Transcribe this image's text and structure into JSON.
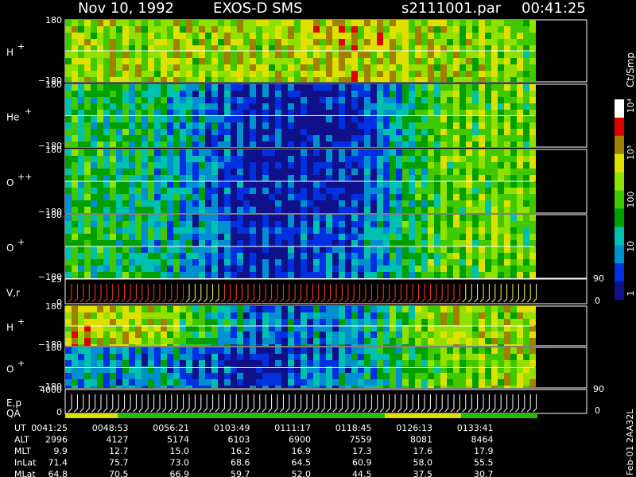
{
  "header": {
    "date": "Nov 10, 1992",
    "instrument": "EXOS-D SMS",
    "file": "s2111001.par",
    "time": "00:41:25"
  },
  "panels": [
    {
      "label": "H",
      "sup": "+",
      "top": "180",
      "bottom": "−180"
    },
    {
      "label": "He",
      "sup": "+",
      "top": "180",
      "bottom": "−180"
    },
    {
      "label": "O",
      "sup": "++",
      "top": "180",
      "bottom": "−180"
    },
    {
      "label": "O",
      "sup": "+",
      "top": "180",
      "bottom": "−180"
    },
    {
      "label": "V,r",
      "top": "25",
      "bottom": "0",
      "right_top": "90",
      "right_bottom": "0"
    },
    {
      "label": "H",
      "sup": "+",
      "top": "180",
      "bottom": "−180"
    },
    {
      "label": "O",
      "sup": "+",
      "top": "180",
      "bottom": "−180"
    },
    {
      "label": "E,p",
      "top": "4000",
      "bottom": "0",
      "right_top": "90",
      "right_bottom": "0"
    }
  ],
  "qa_label": "QA",
  "colorbar": {
    "unit": "Ct/Smp",
    "ticks": [
      "1",
      "10",
      "100",
      "10³",
      "10⁴"
    ]
  },
  "table": {
    "rows": [
      [
        "UT",
        "0041:25",
        "0048:53",
        "0056:21",
        "0103:49",
        "0111:17",
        "0118:45",
        "0126:13",
        "0133:41"
      ],
      [
        "ALT",
        "2996",
        "4127",
        "5174",
        "6103",
        "6900",
        "7559",
        "8081",
        "8464"
      ],
      [
        "MLT",
        "9.9",
        "12.7",
        "15.0",
        "16.2",
        "16.9",
        "17.3",
        "17.6",
        "17.9"
      ],
      [
        "InLat",
        "71.4",
        "75.7",
        "73.0",
        "68.6",
        "64.5",
        "60.9",
        "58.0",
        "55.5"
      ],
      [
        "MLat",
        "64.8",
        "70.5",
        "66.9",
        "59.7",
        "52.0",
        "44.5",
        "37.5",
        "30.7"
      ]
    ]
  },
  "footer": "Feb-01 2AA32L"
}
